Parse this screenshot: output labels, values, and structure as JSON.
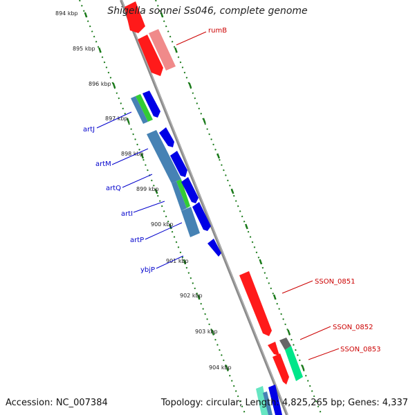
{
  "header": {
    "title": "Shigella sonnei Ss046, complete genome"
  },
  "footer": {
    "accession": "Accession: NC_007384",
    "summary": "Topology: circular; Length: 4,825,265 bp; Genes: 4,337"
  },
  "colors": {
    "background": "#ffffff",
    "backbone": "#8a8a8a",
    "tick": "#1a7a1a",
    "label_forward": "#0000cc",
    "label_reverse": "#cc0000",
    "gene_red": "#ff1a1a",
    "gene_pink": "#f08a8a",
    "gene_blue": "#0000e6",
    "gene_steel": "#4682b4",
    "gene_green": "#33cc33",
    "gene_teal": "#00e68a",
    "gene_gray": "#666666"
  },
  "scale": {
    "unit": "kbp",
    "ticks": [
      {
        "label": "894 kbp",
        "kb": 894
      },
      {
        "label": "895 kbp",
        "kb": 895
      },
      {
        "label": "896 kbp",
        "kb": 896
      },
      {
        "label": "897 kbp",
        "kb": 897
      },
      {
        "label": "898 kbp",
        "kb": 898
      },
      {
        "label": "899 kbp",
        "kb": 899
      },
      {
        "label": "900 kbp",
        "kb": 900
      },
      {
        "label": "901 kbp",
        "kb": 901
      },
      {
        "label": "902 kbp",
        "kb": 902
      },
      {
        "label": "903 kbp",
        "kb": 903
      },
      {
        "label": "904 kbp",
        "kb": 904
      }
    ]
  },
  "gene_labels": [
    {
      "text": "rumB",
      "strand": "reverse"
    },
    {
      "text": "artJ",
      "strand": "forward"
    },
    {
      "text": "artM",
      "strand": "forward"
    },
    {
      "text": "artQ",
      "strand": "forward"
    },
    {
      "text": "artI",
      "strand": "forward"
    },
    {
      "text": "artP",
      "strand": "forward"
    },
    {
      "text": "ybjP",
      "strand": "forward"
    },
    {
      "text": "SSON_0851",
      "strand": "reverse"
    },
    {
      "text": "SSON_0852",
      "strand": "reverse"
    },
    {
      "text": "SSON_0853",
      "strand": "reverse"
    }
  ]
}
